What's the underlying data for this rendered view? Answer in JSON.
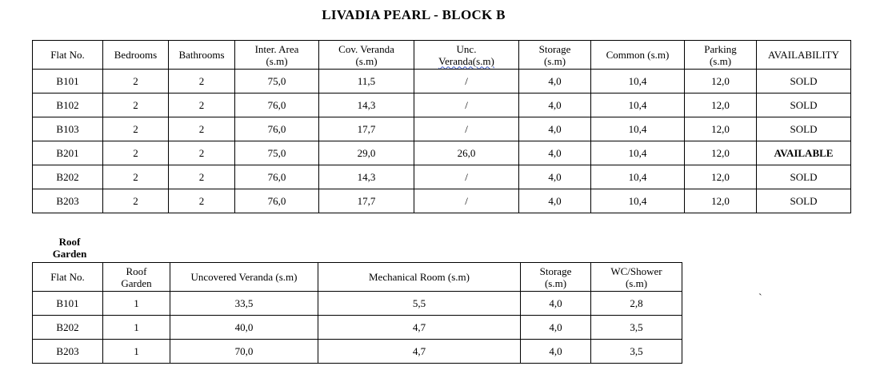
{
  "page": {
    "title": "LIVADIA PEARL - BLOCK B",
    "stray_mark": "`"
  },
  "colors": {
    "text": "#000000",
    "border": "#000000",
    "background": "#ffffff",
    "grammar_underline_blue": "#3a57c4"
  },
  "block_table": {
    "status_bold_value": "AVAILABLE",
    "headers": [
      {
        "lines": [
          "Flat No."
        ]
      },
      {
        "lines": [
          "Bedrooms"
        ]
      },
      {
        "lines": [
          "Bathrooms"
        ]
      },
      {
        "lines": [
          "Inter. Area",
          "(s.m)"
        ]
      },
      {
        "lines": [
          "Cov. Veranda",
          "(s.m)"
        ]
      },
      {
        "lines": [
          "Unc.",
          "Veranda(s.m)"
        ],
        "grammar_underline_line": 1
      },
      {
        "lines": [
          "Storage",
          "(s.m)"
        ]
      },
      {
        "lines": [
          "Common (s.m)"
        ]
      },
      {
        "lines": [
          "Parking",
          "(s.m)"
        ]
      },
      {
        "lines": [
          "AVAILABILITY"
        ]
      }
    ],
    "rows": [
      {
        "cells": [
          "B101",
          "2",
          "2",
          "75,0",
          "11,5",
          "/",
          "4,0",
          "10,4",
          "12,0",
          "SOLD"
        ]
      },
      {
        "cells": [
          "B102",
          "2",
          "2",
          "76,0",
          "14,3",
          "/",
          "4,0",
          "10,4",
          "12,0",
          "SOLD"
        ]
      },
      {
        "cells": [
          "B103",
          "2",
          "2",
          "76,0",
          "17,7",
          "/",
          "4,0",
          "10,4",
          "12,0",
          "SOLD"
        ]
      },
      {
        "cells": [
          "B201",
          "2",
          "2",
          "75,0",
          "29,0",
          "26,0",
          "4,0",
          "10,4",
          "12,0",
          "AVAILABLE"
        ]
      },
      {
        "cells": [
          "B202",
          "2",
          "2",
          "76,0",
          "14,3",
          "/",
          "4,0",
          "10,4",
          "12,0",
          "SOLD"
        ]
      },
      {
        "cells": [
          "B203",
          "2",
          "2",
          "76,0",
          "17,7",
          "/",
          "4,0",
          "10,4",
          "12,0",
          "SOLD"
        ]
      }
    ]
  },
  "roof_garden": {
    "label_lines": [
      "Roof",
      "Garden"
    ],
    "headers": [
      {
        "lines": [
          "Flat No."
        ]
      },
      {
        "lines": [
          "Roof",
          "Garden"
        ]
      },
      {
        "lines": [
          "Uncovered Veranda (s.m)"
        ]
      },
      {
        "lines": [
          "Mechanical Room (s.m)"
        ]
      },
      {
        "lines": [
          "Storage",
          "(s.m)"
        ]
      },
      {
        "lines": [
          "WC/Shower",
          "(s.m)"
        ]
      }
    ],
    "rows": [
      {
        "cells": [
          "B101",
          "1",
          "33,5",
          "5,5",
          "4,0",
          "2,8"
        ]
      },
      {
        "cells": [
          "B202",
          "1",
          "40,0",
          "4,7",
          "4,0",
          "3,5"
        ]
      },
      {
        "cells": [
          "B203",
          "1",
          "70,0",
          "4,7",
          "4,0",
          "3,5"
        ]
      }
    ]
  }
}
